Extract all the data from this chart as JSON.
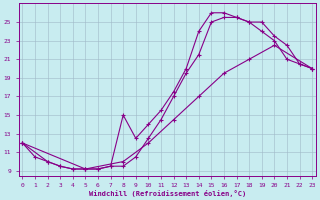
{
  "bg_color": "#c8ecf0",
  "grid_color": "#a0b8c8",
  "line_color": "#880088",
  "marker": "+",
  "xlabel": "Windchill (Refroidissement éolien,°C)",
  "xlim": [
    -0.3,
    23.3
  ],
  "ylim": [
    8.5,
    27.0
  ],
  "xticks": [
    0,
    1,
    2,
    3,
    4,
    5,
    6,
    7,
    8,
    9,
    10,
    11,
    12,
    13,
    14,
    15,
    16,
    17,
    18,
    19,
    20,
    21,
    22,
    23
  ],
  "yticks": [
    9,
    11,
    13,
    15,
    17,
    19,
    21,
    23,
    25
  ],
  "curve1_x": [
    0,
    1,
    2,
    3,
    4,
    5,
    6,
    7,
    8,
    9,
    10,
    11,
    12,
    13,
    14,
    15,
    16,
    17,
    18,
    19,
    20,
    21,
    22,
    23
  ],
  "curve1_y": [
    12.0,
    10.5,
    10.0,
    9.5,
    9.2,
    9.2,
    9.2,
    9.5,
    9.5,
    10.5,
    12.5,
    14.5,
    17.0,
    19.5,
    21.5,
    25.0,
    25.5,
    25.5,
    25.0,
    24.0,
    23.0,
    21.0,
    20.5,
    20.0
  ],
  "curve2_x": [
    0,
    2,
    3,
    4,
    5,
    6,
    7,
    8,
    9,
    10,
    11,
    12,
    13,
    14,
    15,
    16,
    17,
    18,
    19,
    20,
    21,
    22,
    23
  ],
  "curve2_y": [
    12.0,
    10.0,
    9.5,
    9.2,
    9.2,
    9.2,
    9.5,
    15.0,
    12.5,
    14.0,
    15.5,
    17.5,
    20.0,
    24.0,
    26.0,
    26.0,
    25.5,
    25.0,
    25.0,
    23.5,
    22.5,
    20.5,
    20.0
  ],
  "curve3_x": [
    0,
    5,
    8,
    10,
    12,
    14,
    16,
    18,
    20,
    23
  ],
  "curve3_y": [
    12.0,
    9.2,
    10.0,
    12.0,
    14.5,
    17.0,
    19.5,
    21.0,
    22.5,
    20.0
  ]
}
